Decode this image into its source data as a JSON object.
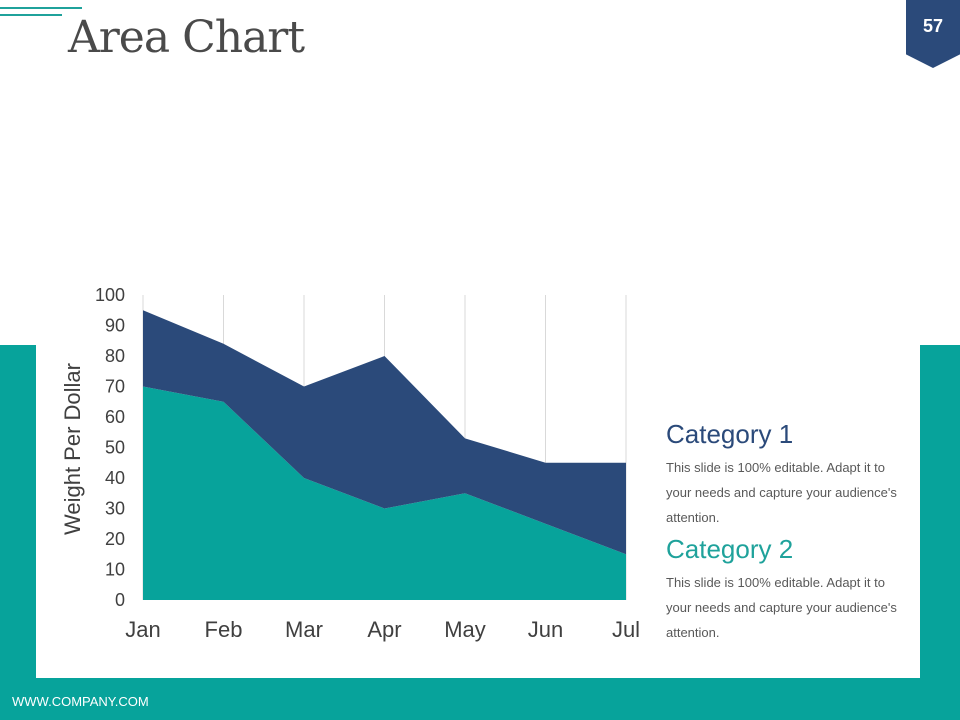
{
  "slide": {
    "title": "Area Chart",
    "page_number": "57",
    "footer": "WWW.COMPANY.COM"
  },
  "colors": {
    "teal": "#07a39b",
    "navy": "#2b4a7a"
  },
  "chart_data": {
    "type": "area",
    "stacked": true,
    "categories": [
      "Jan",
      "Feb",
      "Mar",
      "Apr",
      "May",
      "Jun",
      "Jul"
    ],
    "series": [
      {
        "name": "Category 2",
        "color": "#07a39b",
        "values": [
          70,
          65,
          40,
          30,
          35,
          25,
          15
        ]
      },
      {
        "name": "Category 1",
        "color": "#2b4a7a",
        "values": [
          25,
          19,
          30,
          50,
          18,
          20,
          30
        ]
      }
    ],
    "ylabel": "Weight Per Dollar",
    "ylim": [
      0,
      100
    ],
    "yticks": [
      0,
      10,
      20,
      30,
      40,
      50,
      60,
      70,
      80,
      90,
      100
    ],
    "grid": "vertical"
  },
  "legend": [
    {
      "title": "Category 1",
      "desc": "This slide is 100% editable. Adapt it to your needs and capture your audience's attention."
    },
    {
      "title": "Category 2",
      "desc": "This slide is 100% editable. Adapt it to your needs and capture your audience's attention."
    }
  ]
}
